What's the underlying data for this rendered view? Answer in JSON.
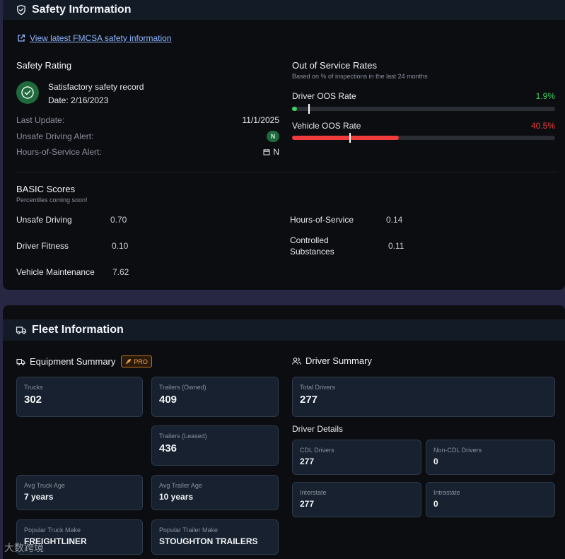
{
  "safety": {
    "title": "Safety Information",
    "fmcsa_link": "View latest FMCSA safety information",
    "rating": {
      "title": "Safety Rating",
      "record": "Satisfactory safety record",
      "date": "Date: 2/16/2023",
      "last_update_label": "Last Update:",
      "last_update_value": "11/1/2025",
      "unsafe_alert_label": "Unsafe Driving Alert:",
      "unsafe_alert_value": "N",
      "hos_alert_label": "Hours-of-Service Alert:",
      "hos_alert_value": "N"
    },
    "oos": {
      "title": "Out of Service Rates",
      "subtitle": "Based on % of inspections in the last 24 months",
      "driver_label": "Driver OOS Rate",
      "driver_value": "1.9%",
      "driver_fraction": 0.019,
      "driver_national_avg": 0.062,
      "vehicle_label": "Vehicle OOS Rate",
      "vehicle_value": "40.5%",
      "vehicle_fraction": 0.405,
      "vehicle_national_avg": 0.217,
      "good_color": "#3ecf5f",
      "bad_color": "#ef3b3b"
    },
    "basic": {
      "title": "BASIC Scores",
      "subtitle": "Percentiles coming soon!",
      "scores": [
        {
          "label": "Unsafe Driving",
          "value": "0.70"
        },
        {
          "label": "Driver Fitness",
          "value": "0.10"
        },
        {
          "label": "Vehicle Maintenance",
          "value": "7.62"
        },
        {
          "label": "Hours-of-Service",
          "value": "0.14"
        },
        {
          "label_line1": "Controlled",
          "label_line2": "Substances",
          "value": "0.11"
        }
      ]
    }
  },
  "fleet": {
    "title": "Fleet Information",
    "equipment": {
      "title": "Equipment Summary",
      "pro_badge": "PRO",
      "trucks_label": "Trucks",
      "trucks_value": "302",
      "trailers_owned_label": "Trailers (Owned)",
      "trailers_owned_value": "409",
      "trailers_leased_label": "Trailers (Leased)",
      "trailers_leased_value": "436",
      "avg_truck_age_label": "Avg Truck Age",
      "avg_truck_age_value": "7 years",
      "avg_trailer_age_label": "Avg Trailer Age",
      "avg_trailer_age_value": "10 years",
      "truck_make_label": "Popular Truck Make",
      "truck_make_value": "FREIGHTLINER",
      "trailer_make_label": "Popular Trailer Make",
      "trailer_make_value": "STOUGHTON TRAILERS"
    },
    "drivers": {
      "title": "Driver Summary",
      "total_label": "Total Drivers",
      "total_value": "277",
      "details_title": "Driver Details",
      "cdl_label": "CDL Drivers",
      "cdl_value": "277",
      "noncdl_label": "Non-CDL Drivers",
      "noncdl_value": "0",
      "interstate_label": "Interstate",
      "interstate_value": "277",
      "intrastate_label": "Intrastate",
      "intrastate_value": "0"
    }
  },
  "watermark": "大数跨境"
}
